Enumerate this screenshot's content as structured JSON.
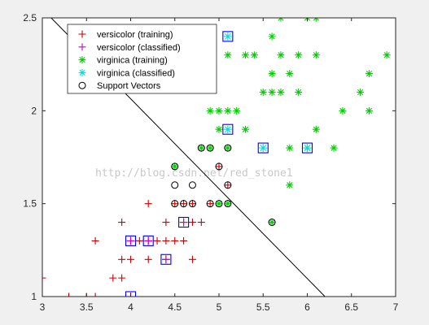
{
  "chart_data": {
    "type": "scatter",
    "xlim": [
      3,
      7
    ],
    "ylim": [
      1,
      2.5
    ],
    "x_ticks": [
      3,
      3.5,
      4,
      4.5,
      5,
      5.5,
      6,
      6.5,
      7
    ],
    "y_ticks": [
      1,
      1.5,
      2,
      2.5
    ],
    "grid": false,
    "legend_position": "top-left",
    "legend": [
      "versicolor (training)",
      "versicolor (classified)",
      "virginica (training)",
      "virginica (classified)",
      "Support Vectors"
    ],
    "watermark": "http://blog.csdn.net/red_stone1",
    "colors": {
      "versicolor_training": "#cc0000",
      "versicolor_classified": "#cc00cc",
      "virginica_training": "#00d000",
      "virginica_classified": "#00e0e0",
      "support_vectors": "#000000",
      "classified_box": "#0000ff",
      "axes_bg": "#ffffff",
      "figure_bg": "#f0f0f0"
    },
    "series": [
      {
        "name": "versicolor (training)",
        "marker": "plus",
        "points": [
          [
            3,
            1.1
          ],
          [
            3.3,
            1
          ],
          [
            3.5,
            1
          ],
          [
            3.6,
            1
          ],
          [
            3.6,
            1.3
          ],
          [
            3.8,
            1.1
          ],
          [
            3.9,
            1.1
          ],
          [
            3.9,
            1.2
          ],
          [
            3.9,
            1.4
          ],
          [
            4,
            1
          ],
          [
            4,
            1.2
          ],
          [
            4,
            1.3
          ],
          [
            4.1,
            1.3
          ],
          [
            4.2,
            1.2
          ],
          [
            4.2,
            1.3
          ],
          [
            4.2,
            1.5
          ],
          [
            4.3,
            1.3
          ],
          [
            4.4,
            1.2
          ],
          [
            4.4,
            1.3
          ],
          [
            4.4,
            1.4
          ],
          [
            4.5,
            1.3
          ],
          [
            4.5,
            1.5
          ],
          [
            4.6,
            1.3
          ],
          [
            4.6,
            1.4
          ],
          [
            4.6,
            1.5
          ],
          [
            4.7,
            1.2
          ],
          [
            4.7,
            1.4
          ],
          [
            4.7,
            1.5
          ],
          [
            4.8,
            1.4
          ],
          [
            4.9,
            1.5
          ],
          [
            5,
            1.7
          ],
          [
            5.1,
            1.6
          ]
        ]
      },
      {
        "name": "versicolor (classified)",
        "marker": "plus",
        "points": [
          [
            4,
            1
          ],
          [
            4,
            1.3
          ],
          [
            4.2,
            1.3
          ],
          [
            4.4,
            1.2
          ],
          [
            4.6,
            1.4
          ]
        ]
      },
      {
        "name": "virginica (training)",
        "marker": "asterisk",
        "points": [
          [
            4.5,
            1.7
          ],
          [
            4.8,
            1.8
          ],
          [
            4.9,
            1.8
          ],
          [
            4.9,
            2
          ],
          [
            5,
            1.5
          ],
          [
            5,
            1.9
          ],
          [
            5,
            2
          ],
          [
            5.1,
            1.5
          ],
          [
            5.1,
            1.8
          ],
          [
            5.1,
            2
          ],
          [
            5.1,
            2.3
          ],
          [
            5.2,
            2
          ],
          [
            5.3,
            1.9
          ],
          [
            5.3,
            2.3
          ],
          [
            5.4,
            2.3
          ],
          [
            5.5,
            2.1
          ],
          [
            5.6,
            1.4
          ],
          [
            5.6,
            2.1
          ],
          [
            5.6,
            2.2
          ],
          [
            5.6,
            2.4
          ],
          [
            5.7,
            2.1
          ],
          [
            5.7,
            2.3
          ],
          [
            5.7,
            2.5
          ],
          [
            5.8,
            1.6
          ],
          [
            5.8,
            1.8
          ],
          [
            5.8,
            2.2
          ],
          [
            5.9,
            2.1
          ],
          [
            5.9,
            2.3
          ],
          [
            6,
            1.8
          ],
          [
            6,
            2.5
          ],
          [
            6.1,
            1.9
          ],
          [
            6.1,
            2.3
          ],
          [
            6.1,
            2.5
          ],
          [
            6.3,
            1.8
          ],
          [
            6.4,
            2
          ],
          [
            6.6,
            2.1
          ],
          [
            6.7,
            2
          ],
          [
            6.7,
            2.2
          ],
          [
            6.9,
            2.3
          ]
        ]
      },
      {
        "name": "virginica (classified)",
        "marker": "asterisk",
        "points": [
          [
            5.1,
            1.9
          ],
          [
            5.1,
            2.4
          ],
          [
            5.5,
            1.8
          ],
          [
            6,
            1.8
          ]
        ]
      },
      {
        "name": "Support Vectors",
        "marker": "circle",
        "points": [
          [
            4.5,
            1.5
          ],
          [
            4.5,
            1.6
          ],
          [
            4.5,
            1.7
          ],
          [
            4.6,
            1.5
          ],
          [
            4.7,
            1.5
          ],
          [
            4.7,
            1.6
          ],
          [
            4.8,
            1.8
          ],
          [
            4.9,
            1.5
          ],
          [
            4.9,
            1.8
          ],
          [
            5,
            1.5
          ],
          [
            5,
            1.7
          ],
          [
            5.1,
            1.5
          ],
          [
            5.1,
            1.6
          ],
          [
            5.1,
            1.8
          ],
          [
            5.6,
            1.4
          ]
        ]
      },
      {
        "name": "",
        "marker": "line",
        "points": [
          [
            3.1,
            2.5
          ],
          [
            6.2,
            1
          ]
        ]
      }
    ]
  }
}
